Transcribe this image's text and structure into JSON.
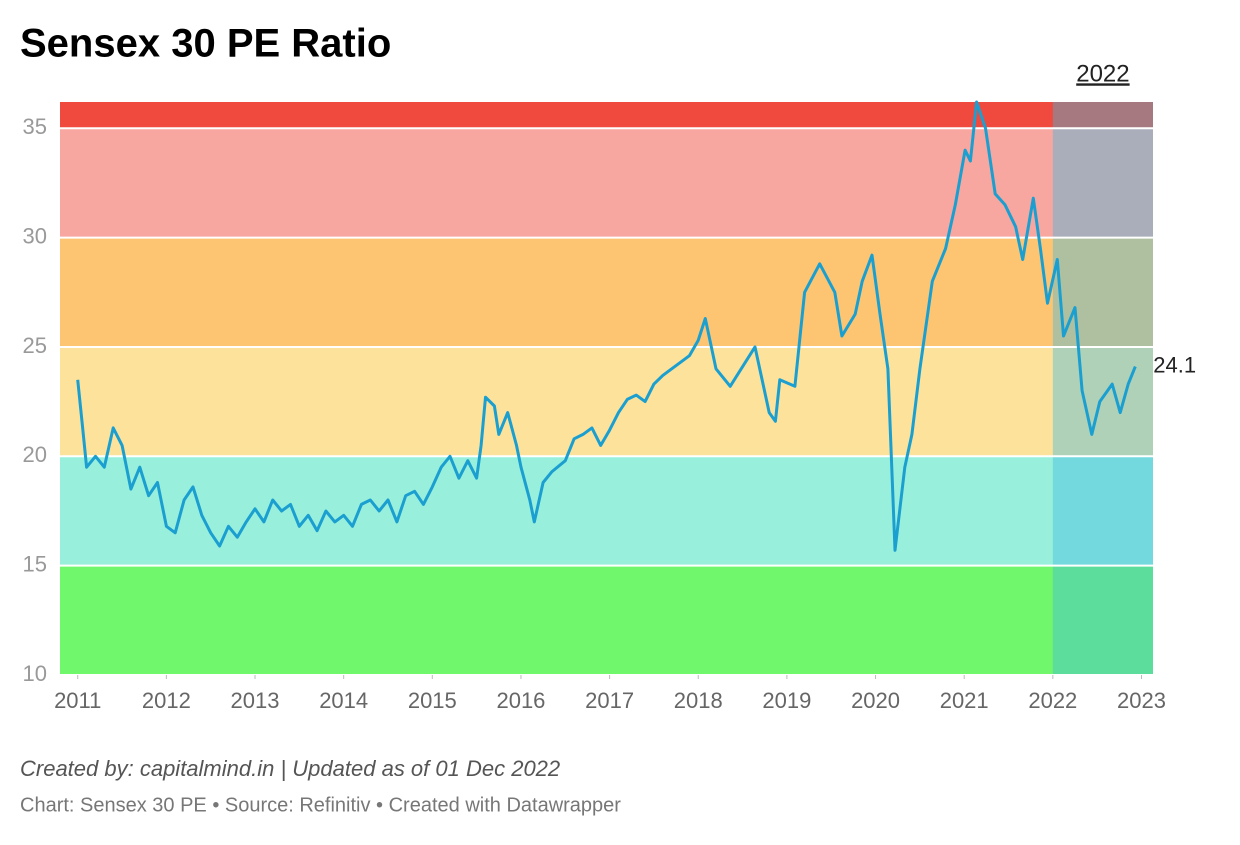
{
  "chart_data": {
    "type": "line",
    "title": "Sensex 30 PE Ratio",
    "notes": [
      "Created by: capitalmind.in | Updated as of 01 Dec 2022",
      "Chart: Sensex 30 PE • Source: Refinitiv • Created with Datawrapper"
    ],
    "xlim": [
      2010.8,
      2023.13
    ],
    "xticks": [
      2011,
      2012,
      2013,
      2014,
      2015,
      2016,
      2017,
      2018,
      2019,
      2020,
      2021,
      2022,
      2023
    ],
    "ylim": [
      10,
      36.2
    ],
    "yticks": [
      10,
      15,
      20,
      25,
      30,
      35
    ],
    "grid": true,
    "bands": [
      {
        "from": 10,
        "to": 15,
        "color": "#70f76b"
      },
      {
        "from": 15,
        "to": 20,
        "color": "#98f0dc"
      },
      {
        "from": 20,
        "to": 25,
        "color": "#fde29b"
      },
      {
        "from": 25,
        "to": 30,
        "color": "#fdc572"
      },
      {
        "from": 30,
        "to": 35,
        "color": "#f7a6a0"
      },
      {
        "from": 35,
        "to": 36.2,
        "color": "#ef4a3d"
      }
    ],
    "highlight": {
      "from": 2022,
      "to": 2023.13,
      "label": "2022",
      "color": "rgba(65,186,224,0.42)"
    },
    "series": [
      {
        "name": "Sensex 30 PE",
        "color": "#1b9fd0",
        "x": [
          2011.0,
          2011.05,
          2011.1,
          2011.2,
          2011.3,
          2011.4,
          2011.5,
          2011.6,
          2011.7,
          2011.8,
          2011.9,
          2012.0,
          2012.1,
          2012.2,
          2012.3,
          2012.4,
          2012.5,
          2012.6,
          2012.7,
          2012.8,
          2012.9,
          2013.0,
          2013.1,
          2013.2,
          2013.3,
          2013.4,
          2013.5,
          2013.6,
          2013.7,
          2013.8,
          2013.9,
          2014.0,
          2014.1,
          2014.2,
          2014.3,
          2014.4,
          2014.5,
          2014.6,
          2014.7,
          2014.8,
          2014.9,
          2015.0,
          2015.1,
          2015.2,
          2015.3,
          2015.4,
          2015.5,
          2015.55,
          2015.6,
          2015.7,
          2015.75,
          2015.85,
          2015.95,
          2016.0,
          2016.1,
          2016.15,
          2016.25,
          2016.35,
          2016.5,
          2016.6,
          2016.7,
          2016.8,
          2016.9,
          2017.0,
          2017.1,
          2017.2,
          2017.3,
          2017.4,
          2017.5,
          2017.6,
          2017.7,
          2017.8,
          2017.9,
          2018.0,
          2018.08,
          2018.2,
          2018.36,
          2018.64,
          2018.8,
          2018.87,
          2018.92,
          2019.09,
          2019.2,
          2019.37,
          2019.54,
          2019.62,
          2019.77,
          2019.85,
          2019.96,
          2020.05,
          2020.14,
          2020.22,
          2020.33,
          2020.41,
          2020.5,
          2020.64,
          2020.79,
          2020.9,
          2021.01,
          2021.07,
          2021.14,
          2021.24,
          2021.35,
          2021.46,
          2021.58,
          2021.66,
          2021.78,
          2021.86,
          2021.94,
          2022.05,
          2022.12,
          2022.25,
          2022.33,
          2022.44,
          2022.53,
          2022.67,
          2022.76,
          2022.85,
          2022.93
        ],
        "values": [
          23.5,
          21.5,
          19.5,
          20,
          19.5,
          21.3,
          20.5,
          18.5,
          19.5,
          18.2,
          18.8,
          16.8,
          16.5,
          18.0,
          18.6,
          17.3,
          16.5,
          15.9,
          16.8,
          16.3,
          17.0,
          17.6,
          17.0,
          18.0,
          17.5,
          17.8,
          16.8,
          17.3,
          16.6,
          17.5,
          17.0,
          17.3,
          16.8,
          17.8,
          18.0,
          17.5,
          18.0,
          17.0,
          18.2,
          18.4,
          17.8,
          18.6,
          19.5,
          20.0,
          19.0,
          19.8,
          19.0,
          20.5,
          22.7,
          22.3,
          21.0,
          22.0,
          20.5,
          19.5,
          18.0,
          17.0,
          18.8,
          19.3,
          19.8,
          20.8,
          21.0,
          21.3,
          20.5,
          21.2,
          22.0,
          22.6,
          22.8,
          22.5,
          23.3,
          23.7,
          24.0,
          24.3,
          24.6,
          25.3,
          26.3,
          24.0,
          23.2,
          25.0,
          22.0,
          21.6,
          23.5,
          23.2,
          27.5,
          28.8,
          27.5,
          25.5,
          26.5,
          28.0,
          29.2,
          26.5,
          24.0,
          15.7,
          19.5,
          21.0,
          24.0,
          28.0,
          29.5,
          31.5,
          34.0,
          33.5,
          36.2,
          35.0,
          32.0,
          31.5,
          30.5,
          29.0,
          31.8,
          29.5,
          27.0,
          29.0,
          25.5,
          26.8,
          23.0,
          21.0,
          22.5,
          23.3,
          22.0,
          23.3,
          24.1
        ]
      }
    ]
  }
}
